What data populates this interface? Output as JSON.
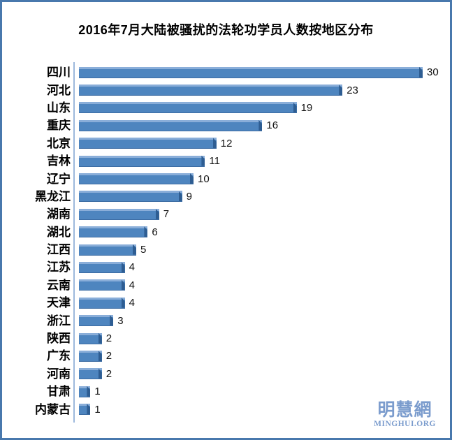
{
  "frame": {
    "border_color": "#4878ad",
    "background": "#ffffff"
  },
  "title": "2016年7月大陆被骚扰的法轮功学员人数按地区分布",
  "watermark": {
    "cn": "明慧網",
    "en": "MINGHUI.ORG",
    "color": "#7b9ccd"
  },
  "chart_data": {
    "type": "bar",
    "orientation": "horizontal",
    "title": "2016年7月大陆被骚扰的法轮功学员人数按地区分布",
    "categories": [
      "四川",
      "河北",
      "山东",
      "重庆",
      "北京",
      "吉林",
      "辽宁",
      "黑龙江",
      "湖南",
      "湖北",
      "江西",
      "江苏",
      "云南",
      "天津",
      "浙江",
      "陕西",
      "广东",
      "河南",
      "甘肃",
      "内蒙古"
    ],
    "values": [
      30,
      23,
      19,
      16,
      12,
      11,
      10,
      9,
      7,
      6,
      5,
      4,
      4,
      4,
      3,
      2,
      2,
      2,
      1,
      1
    ],
    "xlim": [
      0,
      30
    ],
    "data_labels": true,
    "legend": false,
    "grid": false,
    "axis_line": "left-vertical",
    "bar_color": "#4e85bf",
    "bar_top_color": "#8aaed9",
    "bar_end_color": "#2e5d92",
    "axis_line_color": "#9cb8dc",
    "label_color": "#000000"
  }
}
